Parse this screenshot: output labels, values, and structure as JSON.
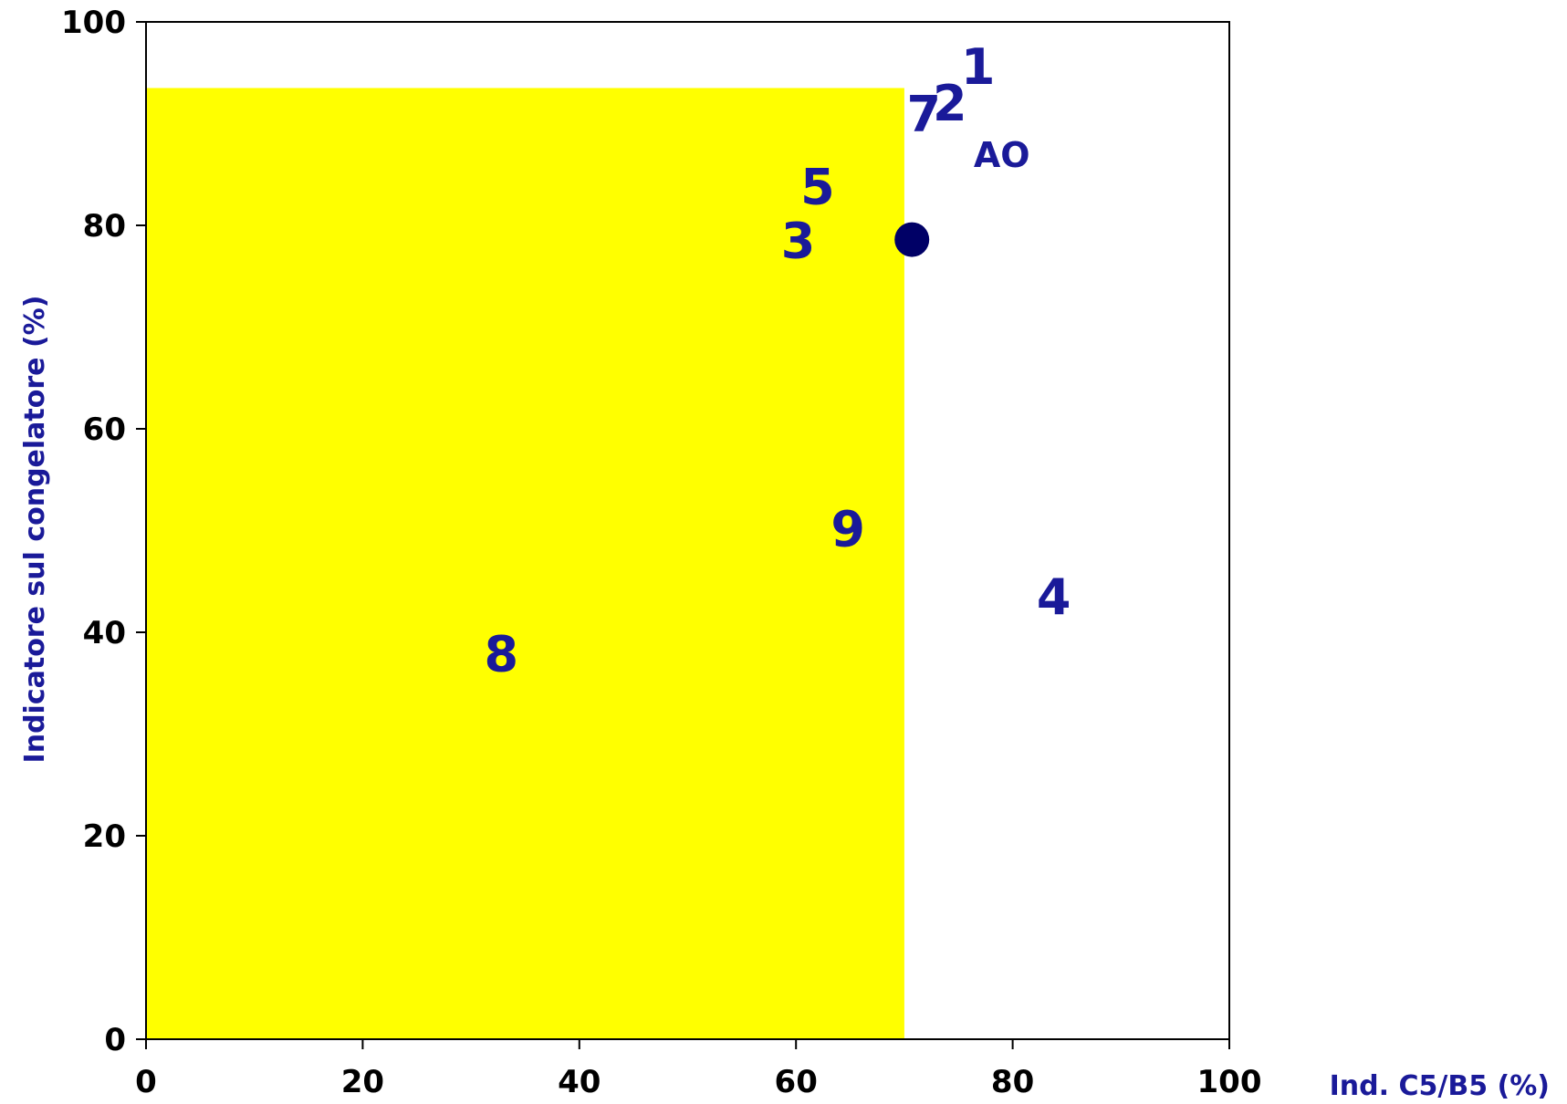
{
  "chart_data": {
    "type": "scatter",
    "xlabel": "Ind. C5/B5 (%)",
    "ylabel": "Indicatore sul congelatore (%)",
    "xlim": [
      0,
      100
    ],
    "ylim": [
      0,
      100
    ],
    "x_ticks": [
      "0",
      "20",
      "40",
      "60",
      "80",
      "100"
    ],
    "y_ticks": [
      "0",
      "20",
      "40",
      "60",
      "80",
      "100"
    ],
    "grid": false,
    "legend": "none",
    "highlight_region": {
      "x": [
        0,
        70
      ],
      "y": [
        0,
        93.5
      ],
      "color": "#FFFF00"
    },
    "reference_point": {
      "x": 70.7,
      "y": 78.6,
      "color": "#000066"
    },
    "points": [
      {
        "label": "1",
        "x": 76.8,
        "y": 95.6
      },
      {
        "label": "7",
        "x": 71.8,
        "y": 91.0
      },
      {
        "label": "2",
        "x": 74.2,
        "y": 92.0
      },
      {
        "label": "AO",
        "x": 79.0,
        "y": 86.9
      },
      {
        "label": "5",
        "x": 62.0,
        "y": 83.8
      },
      {
        "label": "3",
        "x": 60.2,
        "y": 78.5
      },
      {
        "label": "9",
        "x": 64.8,
        "y": 50.2
      },
      {
        "label": "4",
        "x": 83.8,
        "y": 43.5
      },
      {
        "label": "8",
        "x": 32.8,
        "y": 37.9
      }
    ],
    "label_color": "#1A1A99",
    "axis_title_color": "#1A1A99"
  }
}
